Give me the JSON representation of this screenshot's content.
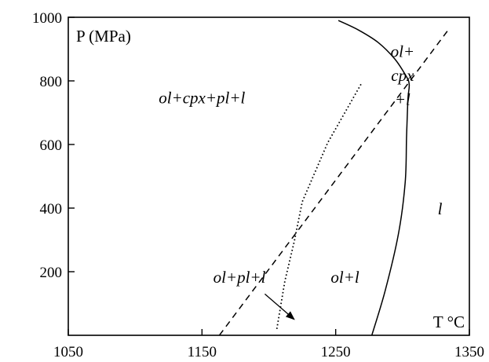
{
  "chart_data": {
    "type": "line",
    "axes": {
      "x": {
        "label": "T °C",
        "lim": [
          1050,
          1350
        ],
        "ticks": [
          1050,
          1150,
          1250,
          1350
        ],
        "tick_labels": [
          "1050",
          "1150",
          "1250",
          "1350"
        ]
      },
      "y": {
        "label": "P (MPa)",
        "lim": [
          0,
          1000
        ],
        "ticks": [
          200,
          400,
          600,
          800,
          1000
        ],
        "tick_labels": [
          "200",
          "400",
          "600",
          "800",
          "1000"
        ]
      }
    },
    "grid": false,
    "series": [
      {
        "style": "solid",
        "color": "#000000",
        "points": [
          [
            1277,
            0
          ],
          [
            1287,
            140
          ],
          [
            1297,
            320
          ],
          [
            1302,
            480
          ],
          [
            1303,
            620
          ],
          [
            1304,
            740
          ],
          [
            1305,
            790
          ],
          [
            1302,
            820
          ],
          [
            1294,
            870
          ],
          [
            1282,
            920
          ],
          [
            1267,
            960
          ],
          [
            1252,
            990
          ]
        ]
      },
      {
        "style": "dashed",
        "color": "#000000",
        "points": [
          [
            1163,
            0
          ],
          [
            1335,
            965
          ]
        ]
      },
      {
        "style": "dotted",
        "color": "#000000",
        "points": [
          [
            1206,
            20
          ],
          [
            1212,
            170
          ],
          [
            1219,
            295
          ],
          [
            1225,
            420
          ],
          [
            1244,
            605
          ],
          [
            1269,
            790
          ]
        ]
      }
    ],
    "annotations": [
      {
        "text": "ol+cpx+pl+l",
        "x": 1150,
        "y": 730
      },
      {
        "text": "ol+",
        "x": 1300,
        "y": 875
      },
      {
        "text": "cpx",
        "x": 1300,
        "y": 800
      },
      {
        "text": "+l",
        "x": 1300,
        "y": 725
      },
      {
        "text": "l",
        "x": 1328,
        "y": 380
      },
      {
        "text": "ol+pl+l",
        "x": 1178,
        "y": 165
      },
      {
        "text": "ol+l",
        "x": 1257,
        "y": 165
      }
    ],
    "arrows": [
      {
        "from": [
          1197,
          130
        ],
        "to": [
          1219,
          50
        ]
      }
    ]
  }
}
